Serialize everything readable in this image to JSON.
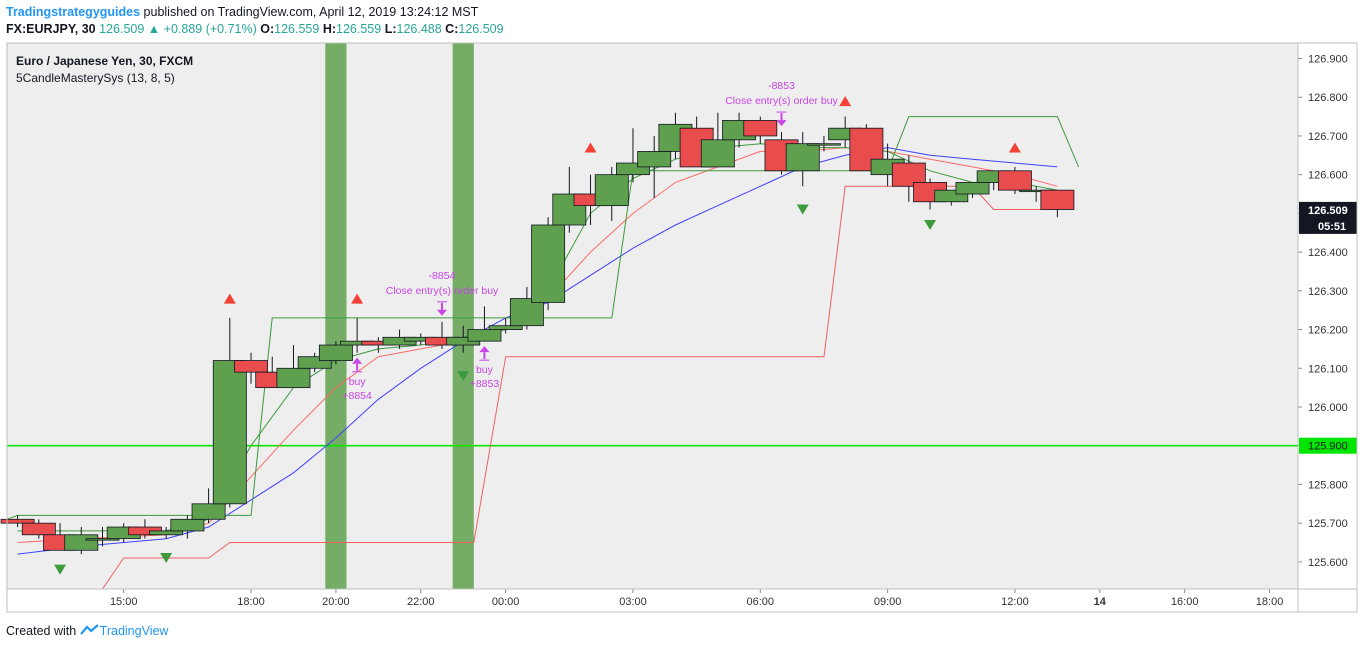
{
  "header": {
    "author": "Tradingstrategyguides",
    "published": "published on TradingView.com, April 12, 2019 13:24:12 MST",
    "symbol": "FX:EURJPY, 30",
    "last": "126.509",
    "change_arrow": "▲",
    "change": "+0.889 (+0.71%)",
    "o_label": "O:",
    "o": "126.559",
    "h_label": "H:",
    "h": "126.559",
    "l_label": "L:",
    "l": "126.488",
    "c_label": "C:",
    "c": "126.509"
  },
  "legend": {
    "instrument": "Euro / Japanese Yen, 30, FXCM",
    "indicator": "5CandleMasterySys (13, 8, 5)"
  },
  "footer": {
    "created_with": "Created with",
    "brand": "TradingView",
    "brand_icon": "tradingview-logo-icon"
  },
  "colors": {
    "up": "#5fa04e",
    "down": "#e84c4c",
    "wick": "#131722",
    "highlight": "#5fa04e",
    "horizontal_line": "#00e600",
    "blue_ma": "#4040ff",
    "red_line": "#ff6a6a",
    "green_line": "#3d9a3d",
    "red_step": "#f06060",
    "signal_text": "#c845e6",
    "up_signal": "#3d9a3d",
    "down_signal": "#f44336",
    "plot_bg": "#eeeeee"
  },
  "chart_data": {
    "type": "candlestick",
    "ylim": [
      125.53,
      126.94
    ],
    "grid": false,
    "y_ticks": [
      "126.900",
      "126.800",
      "126.700",
      "126.600",
      "126.500",
      "126.400",
      "126.300",
      "126.200",
      "126.100",
      "126.000",
      "125.900",
      "125.800",
      "125.700",
      "125.600"
    ],
    "x_ticks": [
      "15:00",
      "18:00",
      "20:00",
      "22:00",
      "00:00",
      "03:00",
      "06:00",
      "09:00",
      "12:00",
      "14",
      "16:00",
      "18:00"
    ],
    "x_tick_hours": [
      15,
      18,
      20,
      22,
      24,
      27,
      30,
      33,
      36,
      38,
      40,
      42
    ],
    "x_range_hours": [
      12.25,
      42.67
    ],
    "last_price_label": "126.509",
    "countdown_label": "05:51",
    "horizontal_level": 125.9,
    "horizontal_level_label": "125.900",
    "highlight_zones": [
      [
        19.75,
        20.25
      ],
      [
        22.75,
        23.25
      ]
    ],
    "candles": [
      {
        "t": 12.5,
        "o": 125.71,
        "h": 125.72,
        "l": 125.69,
        "c": 125.7
      },
      {
        "t": 13.0,
        "o": 125.7,
        "h": 125.71,
        "l": 125.66,
        "c": 125.67
      },
      {
        "t": 13.5,
        "o": 125.67,
        "h": 125.7,
        "l": 125.63,
        "c": 125.63
      },
      {
        "t": 14.0,
        "o": 125.63,
        "h": 125.69,
        "l": 125.62,
        "c": 125.67
      },
      {
        "t": 14.5,
        "o": 125.66,
        "h": 125.69,
        "l": 125.64,
        "c": 125.66
      },
      {
        "t": 15.0,
        "o": 125.66,
        "h": 125.7,
        "l": 125.65,
        "c": 125.69
      },
      {
        "t": 15.5,
        "o": 125.69,
        "h": 125.71,
        "l": 125.66,
        "c": 125.67
      },
      {
        "t": 16.0,
        "o": 125.67,
        "h": 125.69,
        "l": 125.66,
        "c": 125.68
      },
      {
        "t": 16.5,
        "o": 125.68,
        "h": 125.72,
        "l": 125.66,
        "c": 125.71
      },
      {
        "t": 17.0,
        "o": 125.71,
        "h": 125.79,
        "l": 125.7,
        "c": 125.75
      },
      {
        "t": 17.5,
        "o": 125.75,
        "h": 126.23,
        "l": 125.74,
        "c": 126.12
      },
      {
        "t": 18.0,
        "o": 126.12,
        "h": 126.14,
        "l": 126.06,
        "c": 126.09
      },
      {
        "t": 18.5,
        "o": 126.09,
        "h": 126.13,
        "l": 126.05,
        "c": 126.05
      },
      {
        "t": 19.0,
        "o": 126.05,
        "h": 126.16,
        "l": 126.05,
        "c": 126.1
      },
      {
        "t": 19.5,
        "o": 126.1,
        "h": 126.14,
        "l": 126.09,
        "c": 126.13
      },
      {
        "t": 20.0,
        "o": 126.12,
        "h": 126.17,
        "l": 126.11,
        "c": 126.16
      },
      {
        "t": 20.5,
        "o": 126.16,
        "h": 126.23,
        "l": 126.14,
        "c": 126.17
      },
      {
        "t": 21.0,
        "o": 126.17,
        "h": 126.18,
        "l": 126.14,
        "c": 126.16
      },
      {
        "t": 21.5,
        "o": 126.16,
        "h": 126.2,
        "l": 126.15,
        "c": 126.18
      },
      {
        "t": 22.0,
        "o": 126.17,
        "h": 126.19,
        "l": 126.16,
        "c": 126.18
      },
      {
        "t": 22.5,
        "o": 126.18,
        "h": 126.22,
        "l": 126.15,
        "c": 126.16
      },
      {
        "t": 23.0,
        "o": 126.16,
        "h": 126.21,
        "l": 126.14,
        "c": 126.18
      },
      {
        "t": 23.5,
        "o": 126.17,
        "h": 126.26,
        "l": 126.17,
        "c": 126.2
      },
      {
        "t": 24.0,
        "o": 126.2,
        "h": 126.23,
        "l": 126.19,
        "c": 126.21
      },
      {
        "t": 24.5,
        "o": 126.21,
        "h": 126.31,
        "l": 126.2,
        "c": 126.28
      },
      {
        "t": 25.0,
        "o": 126.27,
        "h": 126.49,
        "l": 126.25,
        "c": 126.47
      },
      {
        "t": 25.5,
        "o": 126.47,
        "h": 126.62,
        "l": 126.45,
        "c": 126.55
      },
      {
        "t": 26.0,
        "o": 126.55,
        "h": 126.6,
        "l": 126.47,
        "c": 126.52
      },
      {
        "t": 26.5,
        "o": 126.52,
        "h": 126.62,
        "l": 126.48,
        "c": 126.6
      },
      {
        "t": 27.0,
        "o": 126.6,
        "h": 126.72,
        "l": 126.58,
        "c": 126.63
      },
      {
        "t": 27.5,
        "o": 126.62,
        "h": 126.7,
        "l": 126.54,
        "c": 126.66
      },
      {
        "t": 28.0,
        "o": 126.66,
        "h": 126.76,
        "l": 126.64,
        "c": 126.73
      },
      {
        "t": 28.5,
        "o": 126.72,
        "h": 126.75,
        "l": 126.62,
        "c": 126.62
      },
      {
        "t": 29.0,
        "o": 126.62,
        "h": 126.76,
        "l": 126.62,
        "c": 126.69
      },
      {
        "t": 29.5,
        "o": 126.69,
        "h": 126.76,
        "l": 126.67,
        "c": 126.74
      },
      {
        "t": 30.0,
        "o": 126.74,
        "h": 126.75,
        "l": 126.68,
        "c": 126.7
      },
      {
        "t": 30.5,
        "o": 126.69,
        "h": 126.71,
        "l": 126.6,
        "c": 126.61
      },
      {
        "t": 31.0,
        "o": 126.61,
        "h": 126.71,
        "l": 126.57,
        "c": 126.68
      },
      {
        "t": 31.5,
        "o": 126.68,
        "h": 126.7,
        "l": 126.66,
        "c": 126.68
      },
      {
        "t": 32.0,
        "o": 126.69,
        "h": 126.75,
        "l": 126.67,
        "c": 126.72
      },
      {
        "t": 32.5,
        "o": 126.72,
        "h": 126.73,
        "l": 126.61,
        "c": 126.61
      },
      {
        "t": 33.0,
        "o": 126.6,
        "h": 126.68,
        "l": 126.57,
        "c": 126.64
      },
      {
        "t": 33.5,
        "o": 126.63,
        "h": 126.65,
        "l": 126.53,
        "c": 126.57
      },
      {
        "t": 34.0,
        "o": 126.58,
        "h": 126.59,
        "l": 126.51,
        "c": 126.53
      },
      {
        "t": 34.5,
        "o": 126.53,
        "h": 126.56,
        "l": 126.52,
        "c": 126.56
      },
      {
        "t": 35.0,
        "o": 126.55,
        "h": 126.58,
        "l": 126.54,
        "c": 126.58
      },
      {
        "t": 35.5,
        "o": 126.58,
        "h": 126.61,
        "l": 126.56,
        "c": 126.61
      },
      {
        "t": 36.0,
        "o": 126.61,
        "h": 126.62,
        "l": 126.55,
        "c": 126.56
      },
      {
        "t": 36.5,
        "o": 126.56,
        "h": 126.57,
        "l": 126.53,
        "c": 126.56
      },
      {
        "t": 37.0,
        "o": 126.56,
        "h": 126.56,
        "l": 126.49,
        "c": 126.51
      }
    ],
    "lines": [
      {
        "id": "blue-ma",
        "color_key": "blue_ma",
        "points": [
          [
            12.5,
            125.62
          ],
          [
            14,
            125.64
          ],
          [
            15,
            125.65
          ],
          [
            16,
            125.66
          ],
          [
            17,
            125.69
          ],
          [
            18,
            125.76
          ],
          [
            19,
            125.83
          ],
          [
            20,
            125.92
          ],
          [
            21,
            126.02
          ],
          [
            22,
            126.1
          ],
          [
            23,
            126.17
          ],
          [
            24,
            126.23
          ],
          [
            25,
            126.27
          ],
          [
            26,
            126.34
          ],
          [
            27,
            126.41
          ],
          [
            28,
            126.47
          ],
          [
            29,
            126.52
          ],
          [
            30,
            126.57
          ],
          [
            31,
            126.62
          ],
          [
            32,
            126.65
          ],
          [
            33,
            126.67
          ],
          [
            34,
            126.65
          ],
          [
            35,
            126.64
          ],
          [
            36,
            126.63
          ],
          [
            37,
            126.62
          ]
        ]
      },
      {
        "id": "red-ma",
        "color_key": "red_line",
        "points": [
          [
            12.5,
            125.65
          ],
          [
            14,
            125.66
          ],
          [
            16,
            125.67
          ],
          [
            17,
            125.7
          ],
          [
            18,
            125.82
          ],
          [
            19,
            125.94
          ],
          [
            20,
            126.05
          ],
          [
            21,
            126.13
          ],
          [
            22,
            126.15
          ],
          [
            23,
            126.17
          ],
          [
            24,
            126.2
          ],
          [
            25,
            126.28
          ],
          [
            26,
            126.4
          ],
          [
            27,
            126.5
          ],
          [
            28,
            126.58
          ],
          [
            29,
            126.62
          ],
          [
            30,
            126.66
          ],
          [
            31,
            126.66
          ],
          [
            32,
            126.67
          ],
          [
            33,
            126.66
          ],
          [
            34,
            126.64
          ],
          [
            35,
            126.62
          ],
          [
            36,
            126.6
          ],
          [
            37,
            126.57
          ]
        ]
      },
      {
        "id": "green-ma",
        "color_key": "green_line",
        "points": [
          [
            12.5,
            125.68
          ],
          [
            14,
            125.68
          ],
          [
            16,
            125.68
          ],
          [
            17,
            125.71
          ],
          [
            18,
            125.9
          ],
          [
            19,
            126.05
          ],
          [
            20,
            126.12
          ],
          [
            21,
            126.15
          ],
          [
            22,
            126.16
          ],
          [
            23,
            126.18
          ],
          [
            24,
            126.2
          ],
          [
            25,
            126.3
          ],
          [
            26,
            126.5
          ],
          [
            27,
            126.59
          ],
          [
            28,
            126.64
          ],
          [
            29,
            126.67
          ],
          [
            30,
            126.68
          ],
          [
            31,
            126.67
          ],
          [
            32,
            126.67
          ],
          [
            33,
            126.66
          ],
          [
            34,
            126.61
          ],
          [
            35,
            126.58
          ],
          [
            36,
            126.58
          ],
          [
            37,
            126.56
          ]
        ]
      },
      {
        "id": "green-step",
        "color_key": "green_line",
        "points": [
          [
            12.25,
            125.71
          ],
          [
            12.5,
            125.72
          ],
          [
            17.5,
            125.72
          ],
          [
            18.0,
            125.72
          ],
          [
            18.5,
            126.23
          ],
          [
            26.0,
            126.23
          ],
          [
            26.5,
            126.23
          ],
          [
            27.0,
            126.61
          ],
          [
            33.0,
            126.61
          ],
          [
            33.5,
            126.75
          ],
          [
            36.0,
            126.75
          ],
          [
            37.0,
            126.75
          ],
          [
            37.5,
            126.62
          ]
        ]
      },
      {
        "id": "red-step",
        "color_key": "red_step",
        "points": [
          [
            14.5,
            125.53
          ],
          [
            15.0,
            125.61
          ],
          [
            17.0,
            125.61
          ],
          [
            17.5,
            125.65
          ],
          [
            23.25,
            125.65
          ],
          [
            24.0,
            126.13
          ],
          [
            31.5,
            126.13
          ],
          [
            32.0,
            126.57
          ],
          [
            35.0,
            126.57
          ],
          [
            35.5,
            126.51
          ],
          [
            37.0,
            126.51
          ]
        ]
      }
    ],
    "up_signals": [
      [
        13.5,
        125.58
      ],
      [
        16.0,
        125.61
      ],
      [
        23.0,
        126.08
      ],
      [
        31.0,
        126.51
      ],
      [
        34.0,
        126.47
      ]
    ],
    "down_signals": [
      [
        17.5,
        126.28
      ],
      [
        20.5,
        126.28
      ],
      [
        26.0,
        126.67
      ],
      [
        32.0,
        126.79
      ],
      [
        36.0,
        126.67
      ]
    ],
    "annotations": [
      {
        "t": 20.5,
        "lines": [
          "buy",
          "+8854"
        ],
        "kind": "entry"
      },
      {
        "t": 22.5,
        "lines": [
          "-8854",
          "Close entry(s) order buy"
        ],
        "kind": "exit"
      },
      {
        "t": 23.5,
        "lines": [
          "buy",
          "+8853"
        ],
        "kind": "entry"
      },
      {
        "t": 30.5,
        "lines": [
          "-8853",
          "Close entry(s) order buy"
        ],
        "kind": "exit"
      }
    ]
  }
}
